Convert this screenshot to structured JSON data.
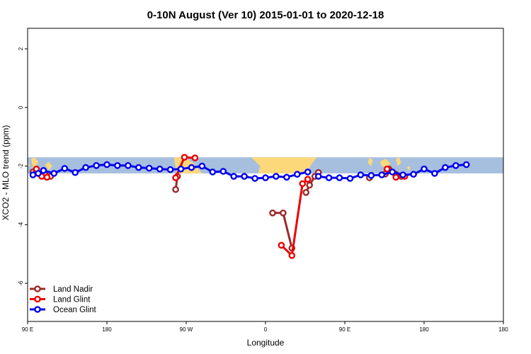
{
  "chart_data": {
    "type": "line",
    "title": "0-10N August (Ver 10)   2015-01-01 to 2020-12-18",
    "xlabel": "Longitude",
    "ylabel": "XCO2 - MLO trend (ppm)",
    "xlim": [
      -90,
      180
    ],
    "ylim": [
      -7.3,
      2.7
    ],
    "x_ticks": [
      {
        "value": -90,
        "label": "90 E"
      },
      {
        "value": -45,
        "label": "180"
      },
      {
        "value": 0,
        "label": "90 W"
      },
      {
        "value": 45,
        "label": "0"
      },
      {
        "value": 90,
        "label": "90 E"
      },
      {
        "value": 135,
        "label": "180"
      }
    ],
    "y_ticks": [
      {
        "value": 2,
        "label": "2"
      },
      {
        "value": 0,
        "label": "0"
      },
      {
        "value": -2,
        "label": "-2"
      },
      {
        "value": -4,
        "label": "-4"
      },
      {
        "value": -6,
        "label": "-6"
      }
    ],
    "background_map": {
      "lat_band": [
        -2.25,
        -1.7
      ],
      "ocean_color": "#a7bfdf",
      "land_color": "#fcd87a"
    },
    "legend_position": "bottom-left",
    "series": [
      {
        "name": "Land Nadir",
        "color": "#9b2a2a",
        "segments": [
          [
            [
              -87,
              -2.2
            ],
            [
              -85,
              -2.15
            ],
            [
              -80,
              -2.3
            ],
            [
              -77,
              -2.35
            ]
          ],
          [
            [
              -6,
              -2.8
            ],
            [
              -5,
              -2.35
            ]
          ],
          [
            [
              49,
              -3.6
            ],
            [
              55,
              -3.6
            ],
            [
              60,
              -4.8
            ]
          ],
          [
            [
              68,
              -2.9
            ],
            [
              70,
              -2.65
            ],
            [
              73,
              -2.35
            ],
            [
              75,
              -2.22
            ]
          ],
          [
            [
              104,
              -2.4
            ]
          ],
          [
            [
              113,
              -2.27
            ],
            [
              115,
              -2.1
            ],
            [
              119,
              -2.28
            ],
            [
              122,
              -2.35
            ]
          ]
        ]
      },
      {
        "name": "Land Glint",
        "color": "#ee0000",
        "segments": [
          [
            [
              -85,
              -2.1
            ],
            [
              -82,
              -2.35
            ],
            [
              -79,
              -2.38
            ]
          ],
          [
            [
              -6,
              -2.4
            ],
            [
              -1,
              -1.7
            ],
            [
              5,
              -1.72
            ]
          ],
          [
            [
              54,
              -4.7
            ],
            [
              60,
              -5.05
            ],
            [
              66,
              -2.6
            ],
            [
              69,
              -2.45
            ]
          ],
          [
            [
              114,
              -2.1
            ],
            [
              119,
              -2.38
            ],
            [
              124,
              -2.35
            ]
          ]
        ]
      },
      {
        "name": "Ocean Glint",
        "color": "#0000ee",
        "segments": [
          [
            [
              -87,
              -2.3
            ],
            [
              -84,
              -2.25
            ],
            [
              -81,
              -2.15
            ],
            [
              -75,
              -2.25
            ],
            [
              -69,
              -2.08
            ],
            [
              -63,
              -2.22
            ],
            [
              -57,
              -2.05
            ],
            [
              -51,
              -1.98
            ],
            [
              -45,
              -1.95
            ],
            [
              -39,
              -1.98
            ],
            [
              -33,
              -1.98
            ],
            [
              -27,
              -2.05
            ],
            [
              -21,
              -2.07
            ],
            [
              -15,
              -2.1
            ],
            [
              -9,
              -2.12
            ],
            [
              -3,
              -2.1
            ],
            [
              3,
              -2.05
            ],
            [
              9,
              -2.0
            ],
            [
              15,
              -2.2
            ],
            [
              21,
              -2.18
            ],
            [
              27,
              -2.35
            ],
            [
              33,
              -2.35
            ],
            [
              39,
              -2.42
            ],
            [
              45,
              -2.4
            ],
            [
              51,
              -2.35
            ],
            [
              57,
              -2.38
            ],
            [
              63,
              -2.28
            ],
            [
              69,
              -2.2
            ]
          ],
          [
            [
              75,
              -2.35
            ],
            [
              81,
              -2.4
            ],
            [
              87,
              -2.4
            ],
            [
              93,
              -2.42
            ],
            [
              99,
              -2.3
            ],
            [
              105,
              -2.32
            ],
            [
              111,
              -2.3
            ],
            [
              117,
              -2.2
            ],
            [
              123,
              -2.3
            ],
            [
              129,
              -2.28
            ],
            [
              135,
              -2.1
            ],
            [
              141,
              -2.25
            ],
            [
              147,
              -2.05
            ],
            [
              153,
              -1.98
            ],
            [
              159,
              -1.95
            ]
          ]
        ]
      }
    ]
  }
}
